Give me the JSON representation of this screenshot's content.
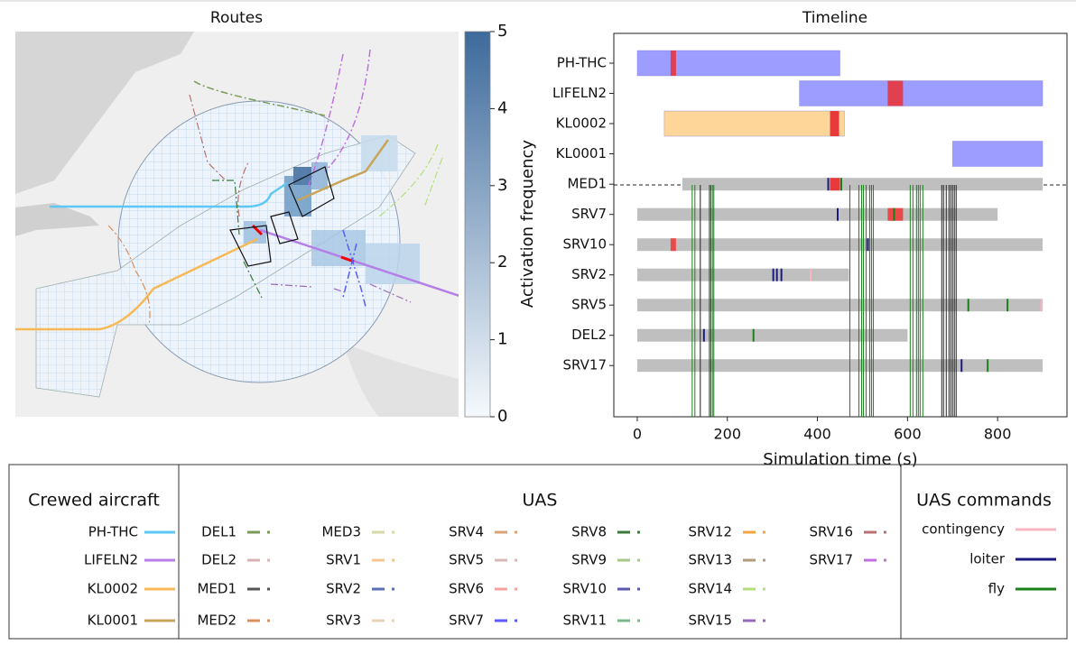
{
  "chart_data": [
    {
      "type": "map",
      "title": "Routes",
      "colorbar": {
        "label": "Activation frequency",
        "ylim": [
          0,
          5
        ],
        "yticks": [
          0,
          1,
          2,
          3,
          4,
          5
        ],
        "colors": [
          "#f5f9fd",
          "#3d6a9c"
        ]
      }
    },
    {
      "type": "gantt",
      "title": "Timeline",
      "xlabel": "Simulation time (s)",
      "xlim": [
        -52,
        954
      ],
      "xticks": [
        0,
        200,
        400,
        600,
        800
      ],
      "categories": [
        "PH-THC",
        "LIFELN2",
        "KL0002",
        "KL0001",
        "MED1",
        "SRV7",
        "SRV10",
        "SRV2",
        "SRV5",
        "DEL2",
        "SRV17"
      ],
      "bars": [
        {
          "row": 0,
          "start": 0,
          "end": 450,
          "color": "#9d9dff"
        },
        {
          "row": 1,
          "start": 360,
          "end": 900,
          "color": "#9d9dff"
        },
        {
          "row": 2,
          "start": 60,
          "end": 460,
          "color": "#ffd699"
        },
        {
          "row": 3,
          "start": 700,
          "end": 900,
          "color": "#9d9dff"
        },
        {
          "row": 4,
          "start": 100,
          "end": 900,
          "color": "#bfbfbf"
        },
        {
          "row": 5,
          "start": 0,
          "end": 800,
          "color": "#bfbfbf"
        },
        {
          "row": 6,
          "start": 0,
          "end": 900,
          "color": "#bfbfbf"
        },
        {
          "row": 7,
          "start": 0,
          "end": 470,
          "color": "#bfbfbf"
        },
        {
          "row": 8,
          "start": 0,
          "end": 900,
          "color": "#bfbfbf"
        },
        {
          "row": 9,
          "start": 0,
          "end": 600,
          "color": "#bfbfbf"
        },
        {
          "row": 10,
          "start": 0,
          "end": 900,
          "color": "#bfbfbf"
        }
      ],
      "segments": [
        {
          "row": 0,
          "start": 74,
          "end": 86,
          "color": "#e0404f"
        },
        {
          "row": 1,
          "start": 556,
          "end": 590,
          "color": "#e0404f"
        },
        {
          "row": 2,
          "start": 428,
          "end": 448,
          "color": "#e83a3a"
        },
        {
          "row": 4,
          "start": 428,
          "end": 450,
          "color": "#e83a3a"
        },
        {
          "row": 5,
          "start": 556,
          "end": 590,
          "color": "#e84a4a"
        },
        {
          "row": 6,
          "start": 74,
          "end": 86,
          "color": "#e84a4a"
        }
      ],
      "events": [
        {
          "row": 4,
          "t": 424,
          "color": "#1a1a80"
        },
        {
          "row": 4,
          "t": 453,
          "color": "#1a801a"
        },
        {
          "row": 5,
          "t": 445,
          "color": "#1a1a80"
        },
        {
          "row": 5,
          "t": 570,
          "color": "#1a801a"
        },
        {
          "row": 6,
          "t": 512,
          "color": "#1a1a80"
        },
        {
          "row": 7,
          "t": 302,
          "color": "#1a1a80"
        },
        {
          "row": 7,
          "t": 310,
          "color": "#1a1a80"
        },
        {
          "row": 7,
          "t": 320,
          "color": "#1a1a80"
        },
        {
          "row": 7,
          "t": 385,
          "color": "#f7b6c2"
        },
        {
          "row": 8,
          "t": 735,
          "color": "#1a801a"
        },
        {
          "row": 8,
          "t": 822,
          "color": "#1a801a"
        },
        {
          "row": 8,
          "t": 897,
          "color": "#f7b6c2"
        },
        {
          "row": 9,
          "t": 148,
          "color": "#1a1a80"
        },
        {
          "row": 9,
          "t": 258,
          "color": "#1a801a"
        },
        {
          "row": 10,
          "t": 720,
          "color": "#1a1a80"
        },
        {
          "row": 10,
          "t": 778,
          "color": "#1a801a"
        }
      ],
      "vlines": [
        {
          "t": 122,
          "color": "#1a801a"
        },
        {
          "t": 128,
          "color": "#1a801a"
        },
        {
          "t": 140,
          "color": "#222222"
        },
        {
          "t": 160,
          "color": "#1a801a"
        },
        {
          "t": 163,
          "color": "#222222"
        },
        {
          "t": 167,
          "color": "#1a801a"
        },
        {
          "t": 170,
          "color": "#1a801a"
        },
        {
          "t": 472,
          "color": "#1a801a"
        },
        {
          "t": 492,
          "color": "#1a801a"
        },
        {
          "t": 498,
          "color": "#1a801a"
        },
        {
          "t": 502,
          "color": "#1a801a"
        },
        {
          "t": 508,
          "color": "#1a801a"
        },
        {
          "t": 516,
          "color": "#1a801a"
        },
        {
          "t": 520,
          "color": "#1a801a"
        },
        {
          "t": 524,
          "color": "#1a801a"
        },
        {
          "t": 606,
          "color": "#1a801a"
        },
        {
          "t": 612,
          "color": "#1a801a"
        },
        {
          "t": 620,
          "color": "#1a801a"
        },
        {
          "t": 624,
          "color": "#1a801a"
        },
        {
          "t": 628,
          "color": "#1a801a"
        },
        {
          "t": 634,
          "color": "#1a801a"
        },
        {
          "t": 676,
          "color": "#222222"
        },
        {
          "t": 680,
          "color": "#222222"
        },
        {
          "t": 686,
          "color": "#222222"
        },
        {
          "t": 692,
          "color": "#222222"
        },
        {
          "t": 696,
          "color": "#222222"
        },
        {
          "t": 700,
          "color": "#222222"
        },
        {
          "t": 704,
          "color": "#222222"
        },
        {
          "t": 708,
          "color": "#222222"
        }
      ]
    }
  ],
  "legend": {
    "sections": [
      {
        "title": "Crewed aircraft",
        "entries": [
          {
            "name": "PH-THC",
            "color": "#5bc8f5"
          },
          {
            "name": "LIFELN2",
            "color": "#b57ee8"
          },
          {
            "name": "KL0002",
            "color": "#f7b955"
          },
          {
            "name": "KL0001",
            "color": "#c9a55a"
          }
        ]
      },
      {
        "title": "UAS",
        "entries": [
          {
            "name": "DEL1",
            "color": "#7a9a5a"
          },
          {
            "name": "DEL2",
            "color": "#d9b3b3"
          },
          {
            "name": "MED1",
            "color": "#555555"
          },
          {
            "name": "MED2",
            "color": "#d9905a"
          },
          {
            "name": "MED3",
            "color": "#d6d9a6"
          },
          {
            "name": "SRV1",
            "color": "#f5c690"
          },
          {
            "name": "SRV2",
            "color": "#5a6fb5"
          },
          {
            "name": "SRV3",
            "color": "#e6d3b8"
          },
          {
            "name": "SRV4",
            "color": "#d9a37a"
          },
          {
            "name": "SRV5",
            "color": "#d9b8b8"
          },
          {
            "name": "SRV6",
            "color": "#f2a3a0"
          },
          {
            "name": "SRV7",
            "color": "#5a5aff"
          },
          {
            "name": "SRV8",
            "color": "#3a7a3a"
          },
          {
            "name": "SRV9",
            "color": "#a6c98a"
          },
          {
            "name": "SRV10",
            "color": "#5a5ab0"
          },
          {
            "name": "SRV11",
            "color": "#7ab88a"
          },
          {
            "name": "SRV12",
            "color": "#f2a640"
          },
          {
            "name": "SRV13",
            "color": "#b09a80"
          },
          {
            "name": "SRV14",
            "color": "#b3e07a"
          },
          {
            "name": "SRV15",
            "color": "#9a6ab8"
          },
          {
            "name": "SRV16",
            "color": "#b87070"
          },
          {
            "name": "SRV17",
            "color": "#c070e0"
          }
        ]
      },
      {
        "title": "UAS commands",
        "entries": [
          {
            "name": "contingency",
            "color": "#f7b6c2"
          },
          {
            "name": "loiter",
            "color": "#1a1a80"
          },
          {
            "name": "fly",
            "color": "#1a801a"
          }
        ]
      }
    ]
  }
}
